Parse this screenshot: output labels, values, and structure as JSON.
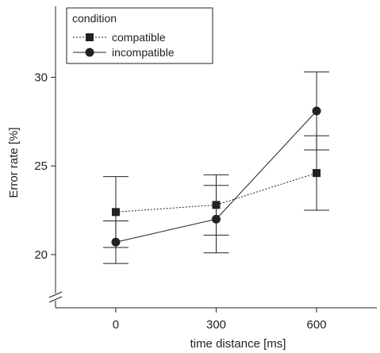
{
  "chart_data": {
    "type": "line",
    "xlabel": "time distance [ms]",
    "ylabel": "Error rate [%]",
    "xticks": [
      "0",
      "300",
      "600"
    ],
    "yticks": [
      "20",
      "25",
      "30"
    ],
    "xlim": [
      -180,
      780
    ],
    "ylim": [
      17,
      34
    ],
    "axis_break": true,
    "grid": false,
    "legend": {
      "title": "condition",
      "placement": "top-left"
    },
    "series": [
      {
        "name": "compatible",
        "marker": "square",
        "line_style": "dotted",
        "color": "#222222",
        "x": [
          0,
          300,
          600
        ],
        "y": [
          22.4,
          22.8,
          24.6
        ],
        "error": [
          2.0,
          1.7,
          2.1
        ]
      },
      {
        "name": "incompatible",
        "marker": "circle",
        "line_style": "solid",
        "color": "#222222",
        "x": [
          0,
          300,
          600
        ],
        "y": [
          20.7,
          22.0,
          28.1
        ],
        "error": [
          1.2,
          1.9,
          2.2
        ]
      }
    ]
  }
}
